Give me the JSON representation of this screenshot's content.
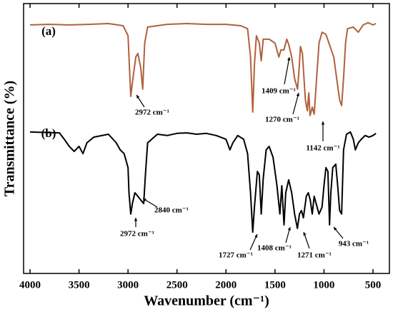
{
  "chart_data": {
    "type": "line",
    "xlabel": "Wavenumber (cm⁻¹)",
    "ylabel": "Transmittance (%)",
    "xlim": [
      4066,
      332
    ],
    "xticks": [
      4000,
      3500,
      3000,
      2500,
      2000,
      1500,
      1000,
      500
    ],
    "ylim": [
      0,
      100
    ],
    "annotations": [
      "(a)",
      "(b)",
      "2972 cm⁻¹",
      "1409 cm⁻¹",
      "1270 cm⁻¹",
      "1142 cm⁻¹",
      "2840 cm⁻¹",
      "2972 cm⁻¹",
      "1727 cm⁻¹",
      "1408 cm⁻¹",
      "1271 cm⁻¹",
      "943 cm⁻¹"
    ],
    "series": [
      {
        "name": "(a)",
        "color": "#b0603c",
        "x": [
          4000,
          3800,
          3600,
          3400,
          3200,
          3050,
          3000,
          2972,
          2950,
          2920,
          2900,
          2870,
          2850,
          2830,
          2800,
          2600,
          2400,
          2200,
          2000,
          1850,
          1780,
          1750,
          1727,
          1710,
          1690,
          1660,
          1640,
          1620,
          1560,
          1500,
          1460,
          1440,
          1409,
          1380,
          1360,
          1330,
          1300,
          1270,
          1255,
          1240,
          1220,
          1190,
          1170,
          1155,
          1142,
          1120,
          1100,
          1080,
          1050,
          1020,
          980,
          950,
          900,
          870,
          840,
          820,
          800,
          780,
          760,
          700,
          650,
          600,
          550,
          500,
          470
        ],
        "values": [
          92.1,
          92.3,
          92.1,
          92.3,
          92.6,
          91.8,
          88.1,
          65.6,
          72.2,
          80.2,
          81.5,
          76.2,
          68.3,
          85.4,
          91.3,
          92.3,
          92.6,
          92.3,
          92.3,
          91.8,
          90.7,
          80.2,
          59.8,
          77.5,
          88.1,
          85.4,
          78.8,
          86.8,
          86.8,
          85.4,
          80.2,
          82.8,
          82.8,
          86.8,
          84.9,
          80.2,
          72.2,
          68.3,
          74.9,
          84.1,
          81.5,
          64.3,
          60.3,
          66.9,
          58.5,
          61.6,
          59.0,
          69.6,
          85.4,
          89.4,
          88.6,
          85.4,
          80.2,
          72.2,
          64.3,
          62.2,
          72.2,
          85.4,
          90.7,
          91.3,
          89.4,
          92.1,
          92.9,
          92.1,
          92.6
        ]
      },
      {
        "name": "(b)",
        "color": "#000000",
        "x": [
          4000,
          3700,
          3650,
          3600,
          3550,
          3500,
          3460,
          3420,
          3350,
          3200,
          3120,
          3080,
          3040,
          3000,
          2990,
          2972,
          2955,
          2930,
          2900,
          2870,
          2840,
          2820,
          2800,
          2700,
          2600,
          2500,
          2400,
          2300,
          2200,
          2100,
          2000,
          1960,
          1930,
          1880,
          1820,
          1780,
          1750,
          1727,
          1710,
          1680,
          1660,
          1640,
          1620,
          1590,
          1560,
          1520,
          1480,
          1450,
          1430,
          1408,
          1390,
          1360,
          1330,
          1300,
          1271,
          1250,
          1230,
          1210,
          1180,
          1160,
          1140,
          1120,
          1100,
          1080,
          1050,
          1020,
          1000,
          980,
          960,
          943,
          930,
          910,
          880,
          860,
          840,
          820,
          800,
          770,
          730,
          700,
          680,
          650,
          620,
          580,
          540,
          500,
          470
        ],
        "values": [
          52.4,
          52.1,
          49.7,
          47.1,
          45.2,
          47.1,
          44.4,
          48.4,
          50.5,
          51.6,
          48.4,
          45.8,
          44.4,
          39.2,
          29.9,
          22.0,
          25.9,
          29.9,
          28.6,
          27.2,
          25.9,
          37.8,
          48.4,
          51.6,
          51.1,
          51.9,
          52.1,
          51.6,
          51.9,
          51.1,
          49.7,
          45.8,
          48.4,
          51.1,
          49.7,
          44.4,
          29.9,
          15.3,
          24.6,
          37.8,
          36.5,
          22.0,
          35.2,
          45.8,
          47.1,
          43.1,
          32.5,
          22.0,
          32.5,
          18.0,
          29.9,
          34.7,
          29.9,
          22.0,
          16.7,
          22.0,
          23.3,
          20.6,
          28.6,
          29.9,
          27.2,
          22.0,
          28.6,
          25.9,
          22.0,
          24.6,
          32.5,
          39.2,
          37.8,
          18.0,
          29.9,
          39.2,
          40.5,
          32.5,
          23.3,
          22.0,
          45.8,
          51.6,
          52.4,
          49.7,
          45.8,
          48.4,
          49.7,
          51.1,
          50.5,
          51.1,
          51.9
        ]
      }
    ]
  }
}
